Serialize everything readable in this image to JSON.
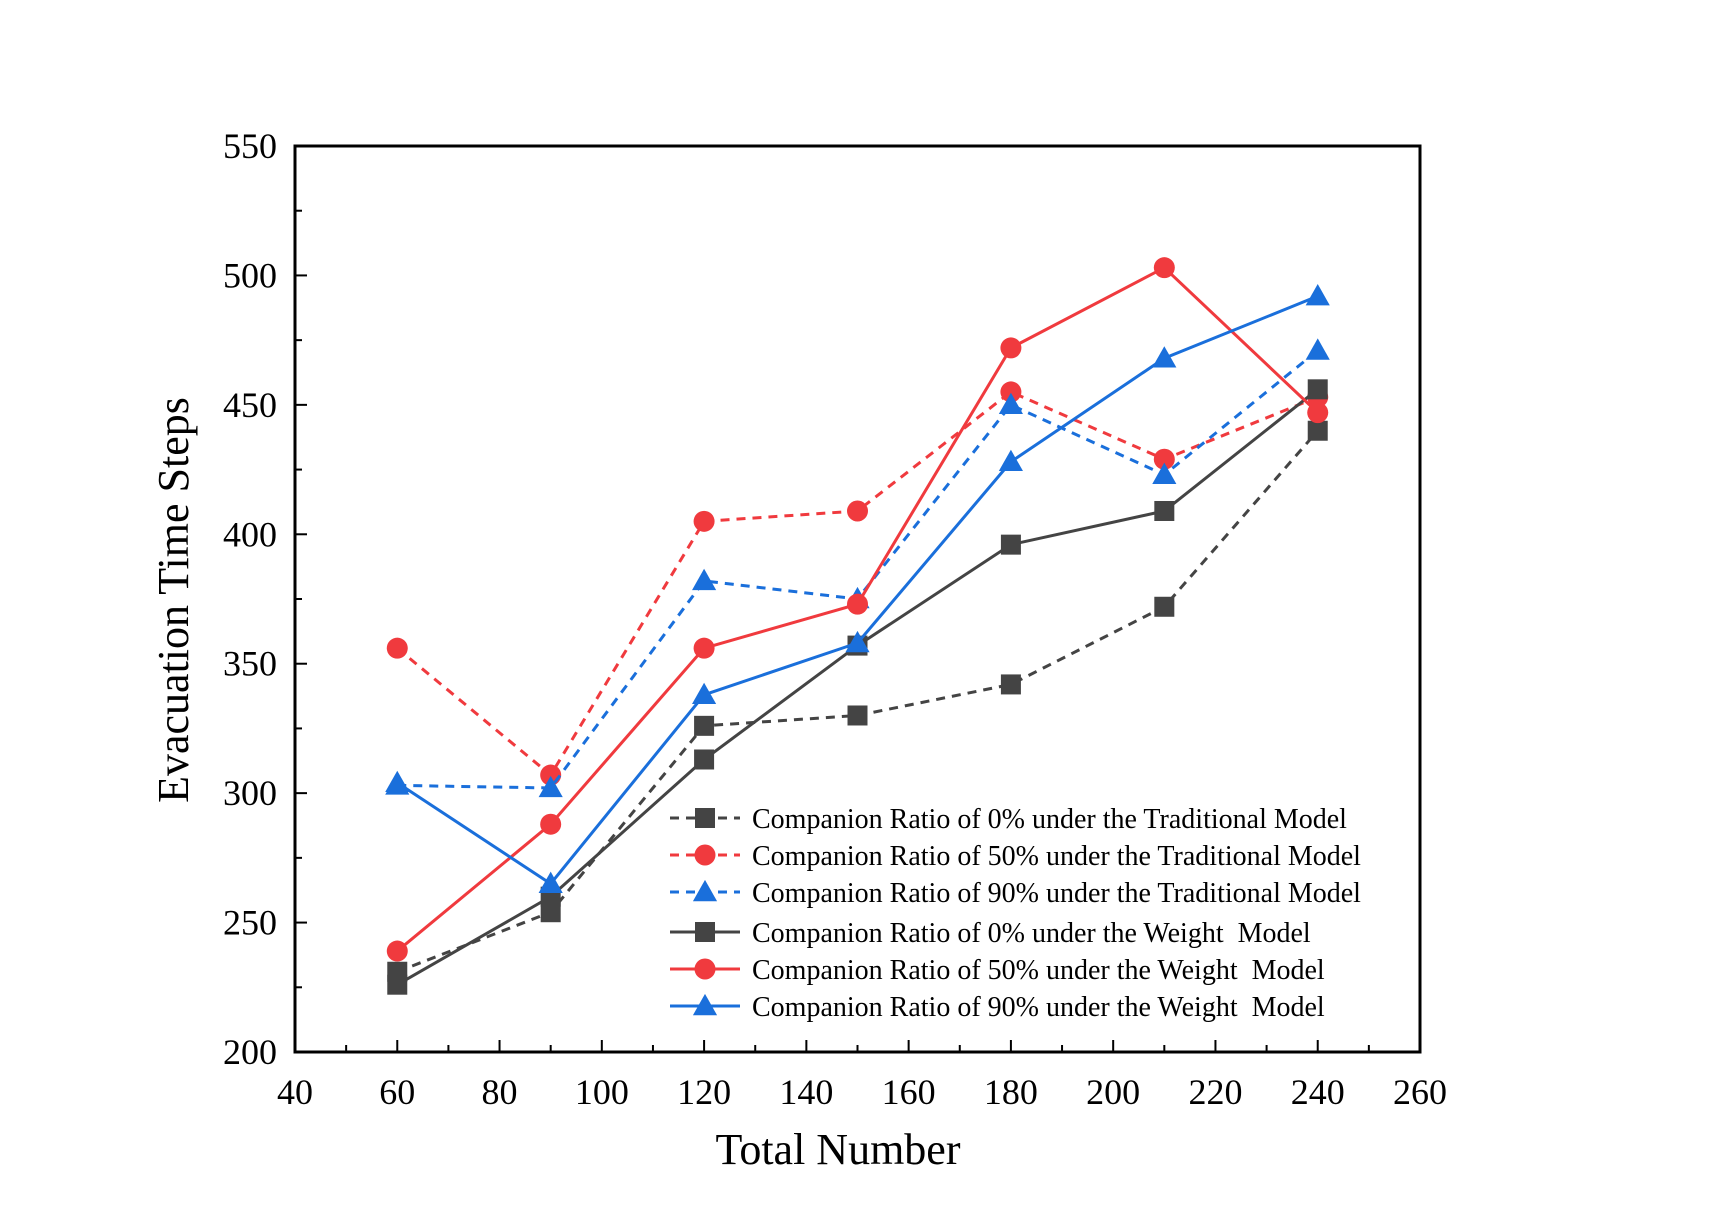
{
  "chart_data": {
    "type": "line",
    "title": "",
    "xlabel": "Total Number",
    "ylabel": "Evacuation Time Steps",
    "xlim": [
      40,
      260
    ],
    "ylim": [
      200,
      550
    ],
    "xticks": [
      "40",
      "60",
      "80",
      "100",
      "120",
      "140",
      "160",
      "180",
      "200",
      "220",
      "240",
      "260"
    ],
    "yticks": [
      "200",
      "250",
      "300",
      "350",
      "400",
      "450",
      "500",
      "550"
    ],
    "legend_position": "bottom-right",
    "x": [
      60,
      90,
      120,
      150,
      180,
      210,
      240
    ],
    "series": [
      {
        "name": "Companion Ratio of 0% under the Traditional Model",
        "color": "#444444",
        "dash": "dashed",
        "marker": "square",
        "values": [
          231,
          254,
          326,
          330,
          342,
          372,
          440
        ]
      },
      {
        "name": "Companion Ratio of 50% under the Traditional Model",
        "color": "#f03a3e",
        "dash": "dashed",
        "marker": "circle",
        "values": [
          356,
          307,
          405,
          409,
          455,
          429,
          453
        ]
      },
      {
        "name": "Companion Ratio of 90% under the Traditional Model",
        "color": "#1a6fdb",
        "dash": "dashed",
        "marker": "triangle",
        "values": [
          303,
          302,
          382,
          375,
          450,
          423,
          471
        ]
      },
      {
        "name": "Companion Ratio of 0% under the Weight  Model",
        "color": "#444444",
        "dash": "solid",
        "marker": "square",
        "values": [
          226,
          260,
          313,
          357,
          396,
          409,
          456
        ]
      },
      {
        "name": "Companion Ratio of 50% under the Weight  Model",
        "color": "#f03a3e",
        "dash": "solid",
        "marker": "circle",
        "values": [
          239,
          288,
          356,
          373,
          472,
          503,
          447
        ]
      },
      {
        "name": "Companion Ratio of 90% under the Weight  Model",
        "color": "#1a6fdb",
        "dash": "solid",
        "marker": "triangle",
        "values": [
          304,
          265,
          338,
          358,
          428,
          468,
          492
        ]
      }
    ]
  }
}
